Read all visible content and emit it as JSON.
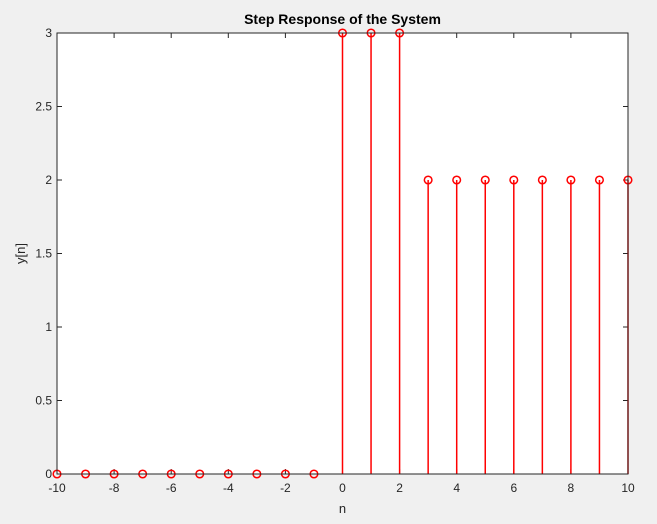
{
  "chart_data": {
    "type": "stem",
    "title": "Step Response of the System",
    "xlabel": "n",
    "ylabel": "y[n]",
    "xlim": [
      -10,
      10
    ],
    "ylim": [
      0,
      3
    ],
    "xticks": [
      "-10",
      "-8",
      "-6",
      "-4",
      "-2",
      "0",
      "2",
      "4",
      "6",
      "8",
      "10"
    ],
    "yticks": [
      "0",
      "0.5",
      "1",
      "1.5",
      "2",
      "2.5",
      "3"
    ],
    "grid": false,
    "series": [
      {
        "color": "#ff0000",
        "marker": "circle",
        "x": [
          -10,
          -9,
          -8,
          -7,
          -6,
          -5,
          -4,
          -3,
          -2,
          -1,
          0,
          1,
          2,
          3,
          4,
          5,
          6,
          7,
          8,
          9,
          10
        ],
        "y": [
          0,
          0,
          0,
          0,
          0,
          0,
          0,
          0,
          0,
          0,
          3,
          3,
          3,
          2,
          2,
          2,
          2,
          2,
          2,
          2,
          2
        ]
      }
    ],
    "axes_color": "#262626",
    "plot_background": "#ffffff"
  }
}
